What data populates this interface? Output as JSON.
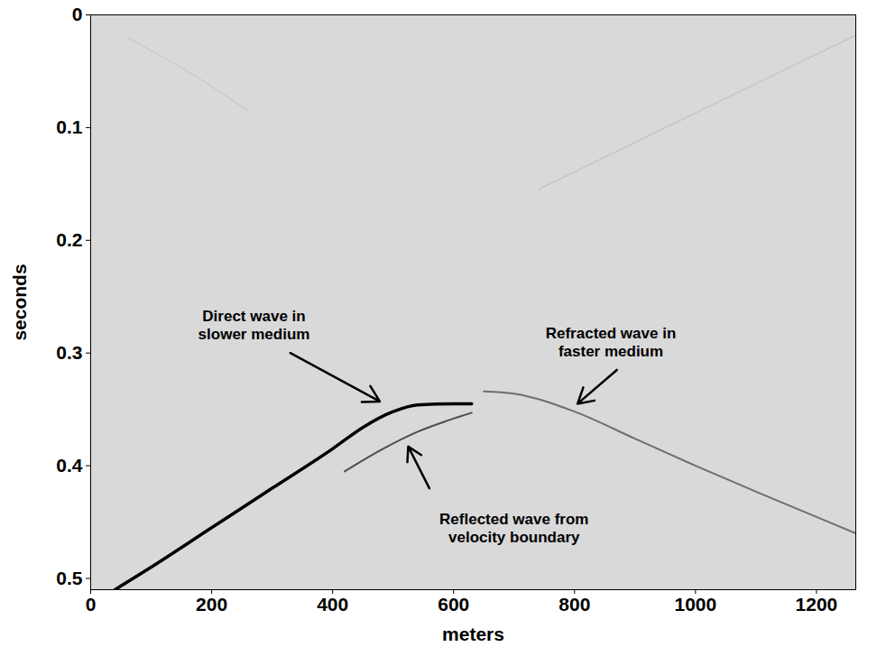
{
  "chart_data": {
    "type": "line",
    "xlabel": "meters",
    "ylabel": "seconds",
    "xlim": [
      0,
      1265
    ],
    "ylim": [
      0,
      0.51
    ],
    "xticks": [
      0,
      200,
      400,
      600,
      800,
      1000,
      1200
    ],
    "yticks": [
      0,
      0.1,
      0.2,
      0.3,
      0.4,
      0.5
    ],
    "grid": false,
    "series": [
      {
        "color": "#000000",
        "x": [
          40,
          100,
          200,
          300,
          400,
          450,
          500,
          540,
          600,
          630
        ],
        "values": [
          0.51,
          0.49,
          0.455,
          0.42,
          0.385,
          0.366,
          0.352,
          0.346,
          0.345,
          0.345
        ]
      },
      {
        "color": "#4d4d4d",
        "x": [
          420,
          480,
          540,
          590,
          630
        ],
        "values": [
          0.405,
          0.386,
          0.37,
          0.36,
          0.353
        ]
      },
      {
        "color": "#6e6e6e",
        "x": [
          650,
          700,
          800,
          900,
          1000,
          1100,
          1265
        ],
        "values": [
          0.334,
          0.336,
          0.352,
          0.376,
          0.4,
          0.423,
          0.46
        ]
      },
      {
        "color": "#c4c4c4",
        "x": [
          740,
          1000,
          1265
        ],
        "values": [
          0.155,
          0.087,
          0.018
        ]
      },
      {
        "color": "#c8c8c8",
        "x": [
          60,
          160,
          260
        ],
        "values": [
          0.02,
          0.05,
          0.085
        ]
      }
    ],
    "annotations": [
      {
        "text": "Direct wave in\nslower medium",
        "x": 270,
        "y": 0.275,
        "arrow_from": [
          330,
          0.3
        ],
        "arrow_to": [
          478,
          0.343
        ]
      },
      {
        "text": "Refracted wave in\nfaster medium",
        "x": 860,
        "y": 0.29,
        "arrow_from": [
          870,
          0.315
        ],
        "arrow_to": [
          805,
          0.345
        ]
      },
      {
        "text": "Reflected wave from\nvelocity boundary",
        "x": 700,
        "y": 0.455,
        "arrow_from": [
          560,
          0.42
        ],
        "arrow_to": [
          525,
          0.383
        ]
      }
    ]
  }
}
